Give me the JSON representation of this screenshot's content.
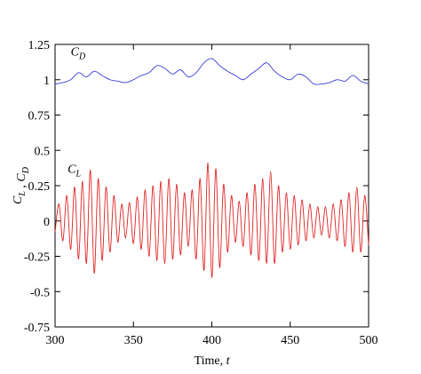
{
  "chart_data": {
    "type": "line",
    "xlabel": [
      "Time, ",
      "t"
    ],
    "ylabel": [
      {
        "text": "C",
        "sub": "L"
      },
      {
        "text": " , "
      },
      {
        "text": "C",
        "sub": "D"
      }
    ],
    "annotations": [
      {
        "text": "C",
        "sub": "D",
        "x": 310,
        "y": 1.17
      },
      {
        "text": "C",
        "sub": "L",
        "x": 308,
        "y": 0.34
      }
    ],
    "xlim": [
      300,
      500
    ],
    "xticks": [
      300,
      350,
      400,
      450,
      500
    ],
    "ylim": [
      -0.75,
      1.25
    ],
    "yticks": [
      -0.75,
      -0.5,
      -0.25,
      0,
      0.25,
      0.5,
      0.75,
      1,
      1.25
    ],
    "series": [
      {
        "color": "#3b3bdc",
        "x": [
          300,
          305,
          310,
          315,
          320,
          325,
          330,
          335,
          340,
          345,
          350,
          355,
          360,
          365,
          370,
          375,
          380,
          385,
          390,
          395,
          400,
          405,
          410,
          415,
          420,
          425,
          430,
          435,
          440,
          445,
          450,
          455,
          460,
          465,
          470,
          475,
          480,
          485,
          490,
          495,
          500
        ],
        "values": [
          0.97,
          0.98,
          1.0,
          1.05,
          1.02,
          1.06,
          1.03,
          1.0,
          0.99,
          0.98,
          1.0,
          1.03,
          1.05,
          1.1,
          1.08,
          1.04,
          1.07,
          1.02,
          1.05,
          1.12,
          1.15,
          1.1,
          1.06,
          1.03,
          1.0,
          1.04,
          1.08,
          1.12,
          1.06,
          1.02,
          1.0,
          1.04,
          1.02,
          0.97,
          0.97,
          0.98,
          1.0,
          0.99,
          1.03,
          0.99,
          0.97
        ]
      },
      {
        "color": "#e02020",
        "x": [
          300,
          302.5,
          305,
          307.5,
          310,
          312.5,
          315,
          317.5,
          320,
          322.5,
          325,
          327.5,
          330,
          332.5,
          335,
          337.5,
          340,
          342.5,
          345,
          347.5,
          350,
          352.5,
          355,
          357.5,
          360,
          362.5,
          365,
          367.5,
          370,
          372.5,
          375,
          377.5,
          380,
          382.5,
          385,
          387.5,
          390,
          392.5,
          395,
          397.5,
          400,
          402.5,
          405,
          407.5,
          410,
          412.5,
          415,
          417.5,
          420,
          422.5,
          425,
          427.5,
          430,
          432.5,
          435,
          437.5,
          440,
          442.5,
          445,
          447.5,
          450,
          452.5,
          455,
          457.5,
          460,
          462.5,
          465,
          467.5,
          470,
          472.5,
          475,
          477.5,
          480,
          482.5,
          485,
          487.5,
          490,
          492.5,
          495,
          497.5,
          500
        ],
        "values": [
          -0.08,
          0.12,
          -0.14,
          0.18,
          -0.2,
          0.24,
          -0.27,
          0.28,
          -0.3,
          0.36,
          -0.37,
          0.3,
          -0.28,
          0.24,
          -0.22,
          0.18,
          -0.15,
          0.12,
          -0.12,
          0.13,
          -0.16,
          0.17,
          -0.2,
          0.22,
          -0.25,
          0.25,
          -0.28,
          0.28,
          -0.3,
          0.3,
          -0.27,
          0.26,
          -0.24,
          0.2,
          -0.18,
          0.22,
          -0.27,
          0.3,
          -0.35,
          0.41,
          -0.4,
          0.37,
          -0.33,
          0.26,
          -0.22,
          0.18,
          -0.15,
          0.14,
          -0.18,
          0.2,
          -0.24,
          0.26,
          -0.28,
          0.3,
          -0.3,
          0.35,
          -0.3,
          0.25,
          -0.22,
          0.2,
          -0.2,
          0.18,
          -0.17,
          0.15,
          -0.14,
          0.12,
          -0.12,
          0.1,
          -0.1,
          0.1,
          -0.12,
          0.12,
          -0.14,
          0.15,
          -0.18,
          0.2,
          -0.22,
          0.24,
          -0.22,
          0.18,
          -0.17
        ]
      }
    ]
  }
}
